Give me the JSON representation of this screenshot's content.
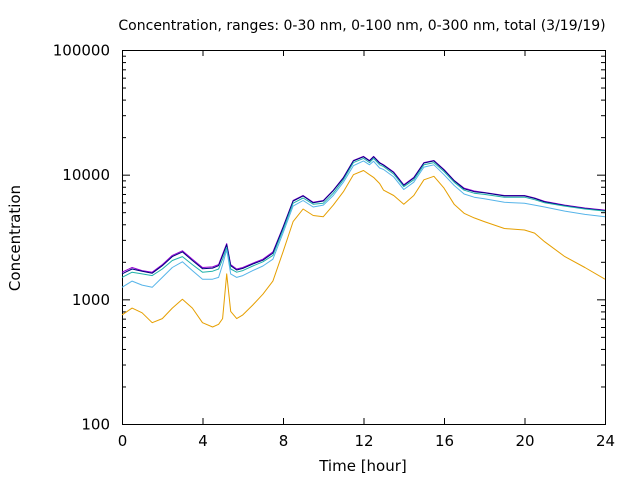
{
  "chart_data": {
    "type": "line",
    "title": "Concentration, ranges: 0-30 nm, 0-100 nm, 0-300 nm, total (3/19/19)",
    "xlabel": "Time [hour]",
    "ylabel": "Concentration",
    "xlim": [
      0,
      24
    ],
    "ylim": [
      100,
      100000
    ],
    "yscale": "log",
    "grid": false,
    "legend": "none",
    "x_ticks": [
      0,
      4,
      8,
      12,
      16,
      20,
      24
    ],
    "x_tick_labels": [
      "0",
      "4",
      "8",
      "12",
      "16",
      "20",
      "24"
    ],
    "y_ticks": [
      100,
      1000,
      10000,
      100000
    ],
    "y_tick_labels": [
      "100",
      "1000",
      "10000",
      "100000"
    ],
    "x": [
      0,
      0.5,
      1,
      1.5,
      2,
      2.5,
      3,
      3.5,
      4,
      4.5,
      4.8,
      5,
      5.2,
      5.4,
      5.7,
      6,
      6.5,
      7,
      7.5,
      8,
      8.5,
      9,
      9.5,
      10,
      10.5,
      11,
      11.5,
      12,
      12.3,
      12.5,
      12.8,
      13,
      13.5,
      14,
      14.5,
      15,
      15.5,
      16,
      16.5,
      17,
      17.5,
      18,
      19,
      20,
      20.5,
      21,
      22,
      23,
      24
    ],
    "series": [
      {
        "color": "#9400d3",
        "values": [
          1650,
          1800,
          1700,
          1650,
          1900,
          2250,
          2450,
          2100,
          1800,
          1820,
          1900,
          2300,
          2800,
          1900,
          1750,
          1800,
          1950,
          2100,
          2400,
          3800,
          6200,
          6800,
          6000,
          6200,
          7500,
          9500,
          13000,
          14000,
          13000,
          14000,
          12500,
          12000,
          10500,
          8300,
          9500,
          12500,
          13000,
          11000,
          9000,
          7800,
          7400,
          7200,
          6800,
          6800,
          6500,
          6100,
          5700,
          5400,
          5200
        ]
      },
      {
        "color": "#000080",
        "values": [
          1600,
          1750,
          1680,
          1620,
          1860,
          2200,
          2400,
          2050,
          1760,
          1780,
          1860,
          2250,
          2750,
          1860,
          1720,
          1770,
          1920,
          2060,
          2350,
          3750,
          6150,
          6750,
          5950,
          6150,
          7450,
          9400,
          12900,
          13900,
          12900,
          13900,
          12400,
          11900,
          10400,
          8200,
          9400,
          12400,
          12900,
          10900,
          8950,
          7700,
          7300,
          7150,
          6750,
          6750,
          6450,
          6050,
          5650,
          5350,
          5150
        ]
      },
      {
        "color": "#20b2aa",
        "values": [
          1500,
          1650,
          1600,
          1550,
          1750,
          2050,
          2200,
          1900,
          1650,
          1680,
          1750,
          2100,
          2600,
          1750,
          1650,
          1700,
          1850,
          2000,
          2250,
          3600,
          5900,
          6500,
          5800,
          5900,
          7100,
          9100,
          12500,
          13500,
          12500,
          13500,
          12000,
          11600,
          10100,
          8000,
          9100,
          12000,
          12500,
          10600,
          8700,
          7500,
          7100,
          6950,
          6600,
          6600,
          6300,
          5950,
          5600,
          5300,
          5100
        ]
      },
      {
        "color": "#56b4e9",
        "values": [
          1250,
          1400,
          1300,
          1250,
          1500,
          1800,
          2000,
          1700,
          1450,
          1450,
          1500,
          1900,
          2500,
          1600,
          1500,
          1550,
          1700,
          1850,
          2100,
          3400,
          5600,
          6200,
          5500,
          5700,
          6800,
          8700,
          11800,
          12900,
          12000,
          12800,
          11300,
          11000,
          9600,
          7600,
          8700,
          11500,
          12000,
          10000,
          8200,
          7000,
          6600,
          6400,
          6000,
          5900,
          5700,
          5500,
          5100,
          4800,
          4600
        ]
      },
      {
        "color": "#e69f00",
        "values": [
          750,
          850,
          780,
          650,
          700,
          850,
          1000,
          850,
          650,
          600,
          630,
          700,
          1600,
          800,
          700,
          750,
          900,
          1100,
          1400,
          2400,
          4200,
          5300,
          4700,
          4600,
          5700,
          7300,
          10000,
          10800,
          10000,
          9500,
          8500,
          7500,
          6800,
          5800,
          6800,
          9100,
          9700,
          7800,
          5800,
          4900,
          4500,
          4200,
          3700,
          3600,
          3400,
          2900,
          2200,
          1800,
          1450
        ]
      }
    ]
  }
}
